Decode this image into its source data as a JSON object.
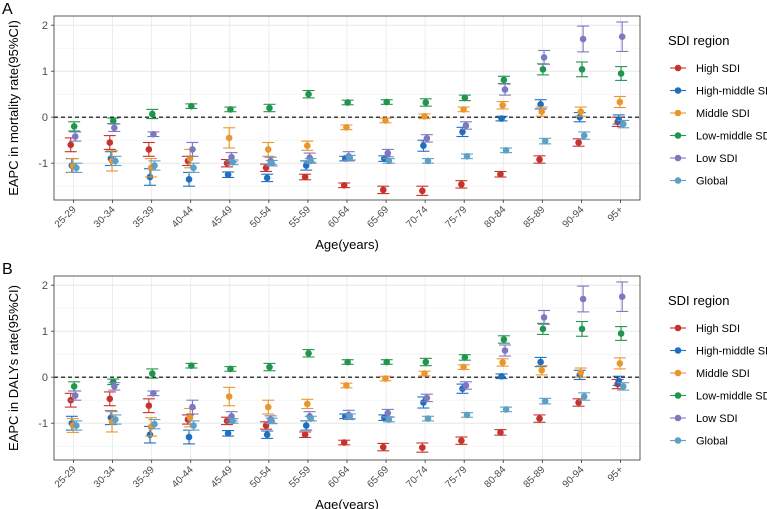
{
  "chart_data": [
    {
      "type": "scatter",
      "panel_label": "A",
      "xlabel": "Age(years)",
      "ylabel": "EAPC in mortality rate(95%CI)",
      "categories": [
        "25-29",
        "30-34",
        "35-39",
        "40-44",
        "45-49",
        "50-54",
        "55-59",
        "60-64",
        "65-69",
        "70-74",
        "75-79",
        "80-84",
        "85-89",
        "90-94",
        "95+"
      ],
      "ylim": [
        -1.8,
        2.2
      ],
      "yticks": [
        "-1",
        "0",
        "1",
        "2"
      ],
      "reference_line": 0,
      "legend_title": "SDI region",
      "legend_position": "right",
      "grid": true,
      "series": [
        {
          "name": "High SDI",
          "color": "#c8322c",
          "values": [
            -0.6,
            -0.55,
            -0.7,
            -0.95,
            -1.0,
            -1.1,
            -1.3,
            -1.48,
            -1.58,
            -1.6,
            -1.46,
            -1.24,
            -0.92,
            -0.55,
            -0.1
          ],
          "err": [
            0.15,
            0.15,
            0.15,
            0.1,
            0.08,
            0.08,
            0.06,
            0.05,
            0.08,
            0.1,
            0.08,
            0.06,
            0.08,
            0.08,
            0.1
          ]
        },
        {
          "name": "High-middle SDI",
          "color": "#1f6fc0",
          "values": [
            -1.05,
            -0.9,
            -1.3,
            -1.35,
            -1.25,
            -1.32,
            -1.05,
            -0.9,
            -0.9,
            -0.62,
            -0.32,
            -0.03,
            0.28,
            0.0,
            -0.05
          ],
          "err": [
            0.15,
            0.15,
            0.18,
            0.15,
            0.06,
            0.08,
            0.1,
            0.05,
            0.06,
            0.12,
            0.1,
            0.05,
            0.1,
            0.1,
            0.1
          ]
        },
        {
          "name": "Middle SDI",
          "color": "#eb962d",
          "values": [
            -1.05,
            -0.95,
            -1.1,
            -0.9,
            -0.45,
            -0.7,
            -0.62,
            -0.22,
            -0.07,
            0.02,
            0.17,
            0.26,
            0.12,
            0.12,
            0.33
          ],
          "err": [
            0.15,
            0.22,
            0.2,
            0.2,
            0.22,
            0.15,
            0.1,
            0.05,
            0.05,
            0.05,
            0.05,
            0.08,
            0.1,
            0.1,
            0.12
          ]
        },
        {
          "name": "Low-middle SDI",
          "color": "#21954d",
          "values": [
            -0.2,
            -0.08,
            0.07,
            0.24,
            0.17,
            0.2,
            0.5,
            0.32,
            0.33,
            0.32,
            0.42,
            0.81,
            1.04,
            1.04,
            0.95
          ],
          "err": [
            0.1,
            0.06,
            0.1,
            0.05,
            0.05,
            0.08,
            0.08,
            0.05,
            0.05,
            0.08,
            0.06,
            0.08,
            0.12,
            0.16,
            0.15
          ]
        },
        {
          "name": "Low SDI",
          "color": "#7d78c0",
          "values": [
            -0.42,
            -0.23,
            -0.37,
            -0.7,
            -0.87,
            -0.95,
            -0.88,
            -0.85,
            -0.78,
            -0.46,
            -0.18,
            0.6,
            1.3,
            1.7,
            1.75
          ],
          "err": [
            0.1,
            0.08,
            0.05,
            0.15,
            0.1,
            0.08,
            0.1,
            0.1,
            0.08,
            0.08,
            0.08,
            0.12,
            0.15,
            0.28,
            0.32
          ]
        },
        {
          "name": "Global",
          "color": "#5e9fc5",
          "values": [
            -1.1,
            -0.95,
            -1.05,
            -1.1,
            -0.98,
            -1.0,
            -0.95,
            -0.88,
            -0.95,
            -0.95,
            -0.85,
            -0.72,
            -0.52,
            -0.4,
            -0.15
          ],
          "err": [
            0.1,
            0.1,
            0.1,
            0.1,
            0.05,
            0.06,
            0.05,
            0.05,
            0.05,
            0.05,
            0.05,
            0.05,
            0.06,
            0.08,
            0.08
          ]
        }
      ]
    },
    {
      "type": "scatter",
      "panel_label": "B",
      "xlabel": "Age(years)",
      "ylabel": "EAPC in DALYs rate(95%CI)",
      "categories": [
        "25-29",
        "30-34",
        "35-39",
        "40-44",
        "45-49",
        "50-54",
        "55-59",
        "60-64",
        "65-69",
        "70-74",
        "75-79",
        "80-84",
        "85-89",
        "90-94",
        "95+"
      ],
      "ylim": [
        -1.8,
        2.2
      ],
      "yticks": [
        "-1",
        "0",
        "1",
        "2"
      ],
      "reference_line": 0,
      "legend_title": "SDI region",
      "legend_position": "right",
      "grid": true,
      "series": [
        {
          "name": "High SDI",
          "color": "#c8322c",
          "values": [
            -0.5,
            -0.47,
            -0.62,
            -0.92,
            -0.95,
            -1.05,
            -1.25,
            -1.42,
            -1.52,
            -1.53,
            -1.38,
            -1.2,
            -0.9,
            -0.55,
            -0.15
          ],
          "err": [
            0.15,
            0.15,
            0.15,
            0.1,
            0.08,
            0.08,
            0.06,
            0.05,
            0.08,
            0.1,
            0.08,
            0.06,
            0.08,
            0.08,
            0.1
          ]
        },
        {
          "name": "High-middle SDI",
          "color": "#1f6fc0",
          "values": [
            -1.0,
            -0.88,
            -1.25,
            -1.3,
            -1.22,
            -1.25,
            -1.05,
            -0.85,
            -0.88,
            -0.55,
            -0.25,
            0.02,
            0.33,
            0.05,
            -0.08
          ],
          "err": [
            0.15,
            0.15,
            0.18,
            0.15,
            0.06,
            0.08,
            0.1,
            0.05,
            0.06,
            0.12,
            0.1,
            0.05,
            0.1,
            0.1,
            0.1
          ]
        },
        {
          "name": "Middle SDI",
          "color": "#eb962d",
          "values": [
            -1.05,
            -0.97,
            -1.08,
            -0.88,
            -0.42,
            -0.65,
            -0.58,
            -0.18,
            -0.03,
            0.08,
            0.22,
            0.32,
            0.15,
            0.1,
            0.3
          ],
          "err": [
            0.15,
            0.22,
            0.2,
            0.2,
            0.2,
            0.15,
            0.1,
            0.05,
            0.05,
            0.05,
            0.05,
            0.08,
            0.1,
            0.1,
            0.12
          ]
        },
        {
          "name": "Low-middle SDI",
          "color": "#21954d",
          "values": [
            -0.2,
            -0.1,
            0.08,
            0.25,
            0.18,
            0.22,
            0.52,
            0.33,
            0.33,
            0.33,
            0.43,
            0.82,
            1.05,
            1.05,
            0.95
          ],
          "err": [
            0.1,
            0.06,
            0.1,
            0.05,
            0.05,
            0.08,
            0.08,
            0.05,
            0.05,
            0.08,
            0.06,
            0.08,
            0.12,
            0.16,
            0.15
          ]
        },
        {
          "name": "Low SDI",
          "color": "#7d78c0",
          "values": [
            -0.4,
            -0.2,
            -0.35,
            -0.65,
            -0.85,
            -0.92,
            -0.85,
            -0.82,
            -0.78,
            -0.45,
            -0.18,
            0.58,
            1.3,
            1.7,
            1.75
          ],
          "err": [
            0.1,
            0.08,
            0.05,
            0.15,
            0.1,
            0.08,
            0.1,
            0.1,
            0.08,
            0.08,
            0.08,
            0.12,
            0.15,
            0.28,
            0.32
          ]
        },
        {
          "name": "Global",
          "color": "#5e9fc5",
          "values": [
            -1.05,
            -0.92,
            -1.02,
            -1.05,
            -0.95,
            -0.95,
            -0.9,
            -0.85,
            -0.92,
            -0.9,
            -0.82,
            -0.7,
            -0.52,
            -0.42,
            -0.2
          ],
          "err": [
            0.1,
            0.1,
            0.1,
            0.1,
            0.05,
            0.06,
            0.05,
            0.05,
            0.05,
            0.05,
            0.05,
            0.05,
            0.06,
            0.08,
            0.08
          ]
        }
      ]
    }
  ]
}
